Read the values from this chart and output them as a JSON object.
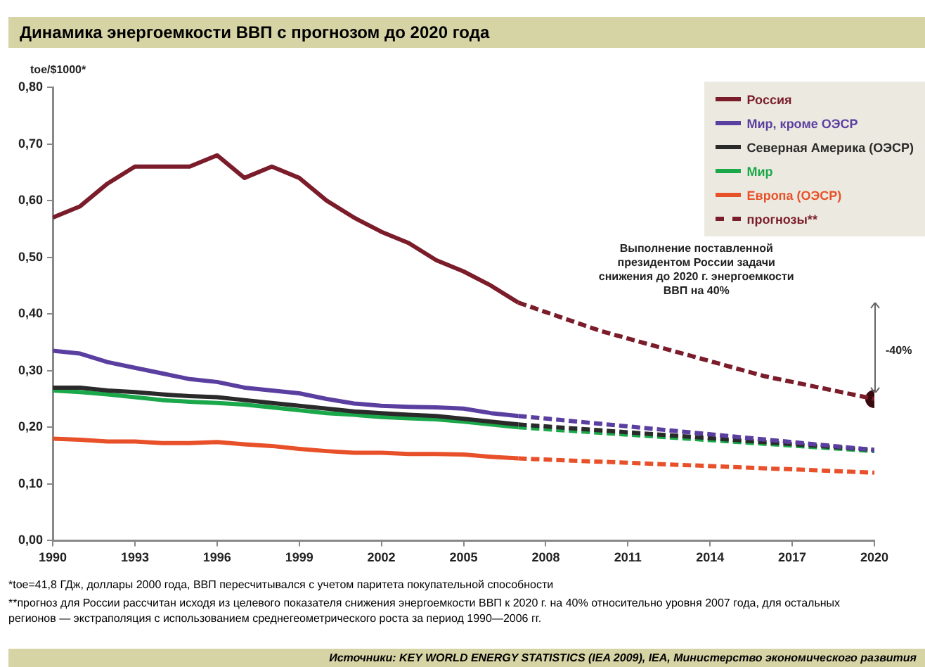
{
  "chart_data": {
    "type": "line",
    "title": "Динамика энергоемкости ВВП с прогнозом до 2020 года",
    "ylabel": "toe/$1000*",
    "xlim": [
      1990,
      2020
    ],
    "xticks": [
      1990,
      1993,
      1996,
      1999,
      2002,
      2005,
      2008,
      2011,
      2014,
      2017,
      2020
    ],
    "ylim": [
      0,
      0.8
    ],
    "yticks": [
      {
        "value": 0,
        "label": "0,00"
      },
      {
        "value": 0.1,
        "label": "0,10"
      },
      {
        "value": 0.2,
        "label": "0,20"
      },
      {
        "value": 0.3,
        "label": "0,30"
      },
      {
        "value": 0.4,
        "label": "0,40"
      },
      {
        "value": 0.5,
        "label": "0,50"
      },
      {
        "value": 0.6,
        "label": "0,60"
      },
      {
        "value": 0.7,
        "label": "0,70"
      },
      {
        "value": 0.8,
        "label": "0,80"
      }
    ],
    "legend": "top right",
    "line_style": "solid",
    "x": [
      1990,
      1991,
      1992,
      1993,
      1994,
      1995,
      1996,
      1997,
      1998,
      1999,
      2000,
      2001,
      2002,
      2003,
      2004,
      2005,
      2006,
      2007
    ],
    "series": [
      {
        "name": "Россия",
        "color": "#7b1c2a",
        "values": [
          0.57,
          0.59,
          0.63,
          0.66,
          0.66,
          0.66,
          0.68,
          0.64,
          0.66,
          0.64,
          0.6,
          0.57,
          0.545,
          0.525,
          0.495,
          0.475,
          0.45,
          0.42
        ]
      },
      {
        "name": "Мир, кроме ОЭСР",
        "color": "#5b3fa0",
        "values": [
          0.335,
          0.33,
          0.315,
          0.305,
          0.295,
          0.285,
          0.28,
          0.27,
          0.265,
          0.26,
          0.25,
          0.242,
          0.238,
          0.236,
          0.235,
          0.233,
          0.225,
          0.22
        ]
      },
      {
        "name": "Северная Америка (ОЭСР)",
        "color": "#2a2a2a",
        "values": [
          0.27,
          0.27,
          0.265,
          0.262,
          0.258,
          0.255,
          0.253,
          0.248,
          0.243,
          0.238,
          0.233,
          0.228,
          0.225,
          0.222,
          0.22,
          0.215,
          0.21,
          0.205
        ]
      },
      {
        "name": "Мир",
        "color": "#1aa84a",
        "values": [
          0.265,
          0.262,
          0.258,
          0.253,
          0.248,
          0.245,
          0.243,
          0.24,
          0.235,
          0.23,
          0.225,
          0.222,
          0.218,
          0.216,
          0.214,
          0.21,
          0.205,
          0.2
        ]
      },
      {
        "name": "Европа (ОЭСР)",
        "color": "#e8502a",
        "values": [
          0.18,
          0.178,
          0.175,
          0.175,
          0.172,
          0.172,
          0.174,
          0.17,
          0.167,
          0.162,
          0.158,
          0.155,
          0.155,
          0.153,
          0.153,
          0.152,
          0.148,
          0.145
        ]
      },
      {
        "name": "прогнозы**",
        "color": "#7b1c2a",
        "line_style": "dashed",
        "x": [
          2007,
          2010,
          2013,
          2016,
          2020
        ],
        "values": [
          0.42,
          0.37,
          0.33,
          0.29,
          0.25
        ]
      },
      {
        "color": "#5b3fa0",
        "line_style": "dashed",
        "x": [
          2007,
          2020
        ],
        "values": [
          0.22,
          0.16
        ]
      },
      {
        "color": "#2a2a2a",
        "line_style": "dashed",
        "x": [
          2007,
          2020
        ],
        "values": [
          0.205,
          0.16
        ]
      },
      {
        "color": "#1aa84a",
        "line_style": "dashed",
        "x": [
          2007,
          2020
        ],
        "values": [
          0.2,
          0.158
        ]
      },
      {
        "color": "#e8502a",
        "line_style": "dashed",
        "x": [
          2007,
          2020
        ],
        "values": [
          0.145,
          0.12
        ]
      },
      {
        "type": "scatter",
        "color": "#3a0a10",
        "x": [
          2020
        ],
        "values": [
          0.25
        ]
      }
    ],
    "annotations": [
      "Выполнение поставленной президентом России задачи снижения до 2020 г. энергоемкости ВВП на 40%",
      "-40%",
      "*toe=41,8 ГДж, доллары 2000 года, ВВП пересчитывался с учетом паритета покупательной способности",
      "**прогноз для России рассчитан исходя из целевого показателя снижения энергоемкости ВВП к 2020 г. на 40% относительно уровня 2007 года, для остальных регионов — экстраполяция с использованием среднегеометрического роста за период 1990—2006 гг.",
      "Источники: KEY WORLD ENERGY STATISTICS (IEA 2009), IEA, Министерство экономического развития"
    ]
  }
}
